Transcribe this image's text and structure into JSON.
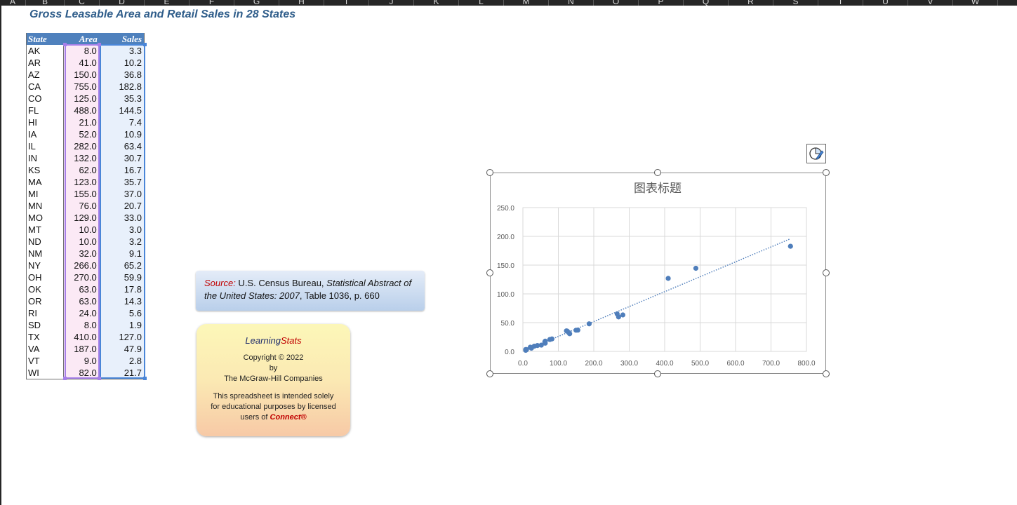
{
  "column_headers": [
    "A",
    "B",
    "C",
    "D",
    "E",
    "F",
    "G",
    "H",
    "I",
    "J",
    "K",
    "L",
    "M",
    "N",
    "O",
    "P",
    "Q",
    "R",
    "S",
    "T",
    "U",
    "V",
    "W"
  ],
  "sheet_title": "Gross Leasable Area and Retail Sales in 28 States",
  "table": {
    "headers": [
      "State",
      "Area",
      "Sales"
    ],
    "rows": [
      [
        "AK",
        "8.0",
        "3.3"
      ],
      [
        "AR",
        "41.0",
        "10.2"
      ],
      [
        "AZ",
        "150.0",
        "36.8"
      ],
      [
        "CA",
        "755.0",
        "182.8"
      ],
      [
        "CO",
        "125.0",
        "35.3"
      ],
      [
        "FL",
        "488.0",
        "144.5"
      ],
      [
        "HI",
        "21.0",
        "7.4"
      ],
      [
        "IA",
        "52.0",
        "10.9"
      ],
      [
        "IL",
        "282.0",
        "63.4"
      ],
      [
        "IN",
        "132.0",
        "30.7"
      ],
      [
        "KS",
        "62.0",
        "16.7"
      ],
      [
        "MA",
        "123.0",
        "35.7"
      ],
      [
        "MI",
        "155.0",
        "37.0"
      ],
      [
        "MN",
        "76.0",
        "20.7"
      ],
      [
        "MO",
        "129.0",
        "33.0"
      ],
      [
        "MT",
        "10.0",
        "3.0"
      ],
      [
        "ND",
        "10.0",
        "3.2"
      ],
      [
        "NM",
        "32.0",
        "9.1"
      ],
      [
        "NY",
        "266.0",
        "65.2"
      ],
      [
        "OH",
        "270.0",
        "59.9"
      ],
      [
        "OK",
        "63.0",
        "17.8"
      ],
      [
        "OR",
        "63.0",
        "14.3"
      ],
      [
        "RI",
        "24.0",
        "5.6"
      ],
      [
        "SD",
        "8.0",
        "1.9"
      ],
      [
        "TX",
        "410.0",
        "127.0"
      ],
      [
        "VA",
        "187.0",
        "47.9"
      ],
      [
        "VT",
        "9.0",
        "2.8"
      ],
      [
        "WI",
        "82.0",
        "21.7"
      ]
    ]
  },
  "source_box": {
    "label": "Source:",
    "pre": " U.S. Census Bureau, ",
    "title": "Statistical Abstract of the United States: 2007",
    "post": ", Table 1036, p. 660"
  },
  "learningstats": {
    "brand_a": "Learning",
    "brand_b": "Stats",
    "copyright": "Copyright © 2022",
    "by": "by",
    "company": "The McGraw-Hill Companies",
    "note": "This spreadsheet is intended solely for educational purposes by licensed users of",
    "connect": "Connect®"
  },
  "chart_data": {
    "type": "scatter",
    "title": "图表标题",
    "xlim": [
      0,
      800
    ],
    "ylim": [
      0,
      250
    ],
    "xticks": [
      "0.0",
      "100.0",
      "200.0",
      "300.0",
      "400.0",
      "500.0",
      "600.0",
      "700.0",
      "800.0"
    ],
    "yticks": [
      "0.0",
      "50.0",
      "100.0",
      "150.0",
      "200.0",
      "250.0"
    ],
    "grid": true,
    "trendline": "linear",
    "trendline_style": "dotted",
    "point_color": "#4f7ebb",
    "points": [
      [
        8,
        3.3
      ],
      [
        41,
        10.2
      ],
      [
        150,
        36.8
      ],
      [
        755,
        182.8
      ],
      [
        125,
        35.3
      ],
      [
        488,
        144.5
      ],
      [
        21,
        7.4
      ],
      [
        52,
        10.9
      ],
      [
        282,
        63.4
      ],
      [
        132,
        30.7
      ],
      [
        62,
        16.7
      ],
      [
        123,
        35.7
      ],
      [
        155,
        37.0
      ],
      [
        76,
        20.7
      ],
      [
        129,
        33.0
      ],
      [
        10,
        3.0
      ],
      [
        10,
        3.2
      ],
      [
        32,
        9.1
      ],
      [
        266,
        65.2
      ],
      [
        270,
        59.9
      ],
      [
        63,
        17.8
      ],
      [
        63,
        14.3
      ],
      [
        24,
        5.6
      ],
      [
        8,
        1.9
      ],
      [
        410,
        127.0
      ],
      [
        187,
        47.9
      ],
      [
        9,
        2.8
      ],
      [
        82,
        21.7
      ]
    ]
  }
}
